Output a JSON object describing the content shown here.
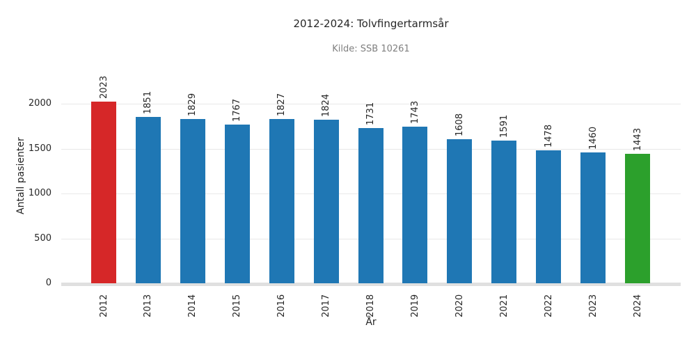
{
  "figure": {
    "title": "2012-2024: Tolvfingertarmsår",
    "subtitle": "Kilde: SSB 10261"
  },
  "chart_data": {
    "type": "bar",
    "title": "2012-2024: Tolvfingertarmsår",
    "subtitle": "Kilde: SSB 10261",
    "xlabel": "År",
    "ylabel": "Antall pasienter",
    "categories": [
      "2012",
      "2013",
      "2014",
      "2015",
      "2016",
      "2017",
      "2018",
      "2019",
      "2020",
      "2021",
      "2022",
      "2023",
      "2024"
    ],
    "values": [
      2023,
      1851,
      1829,
      1767,
      1827,
      1824,
      1731,
      1743,
      1608,
      1591,
      1478,
      1460,
      1443
    ],
    "bar_colors": [
      "#d62728",
      "#1f77b4",
      "#1f77b4",
      "#1f77b4",
      "#1f77b4",
      "#1f77b4",
      "#1f77b4",
      "#1f77b4",
      "#1f77b4",
      "#1f77b4",
      "#1f77b4",
      "#1f77b4",
      "#2ca02c"
    ],
    "value_labels": [
      "2023",
      "1851",
      "1829",
      "1767",
      "1827",
      "1824",
      "1731",
      "1743",
      "1608",
      "1591",
      "1478",
      "1460",
      "1443"
    ],
    "yticks": [
      0,
      500,
      1000,
      1500,
      2000
    ],
    "ylim": [
      0,
      2000
    ],
    "grid": "horizontal",
    "legend": "none",
    "tick_rotation_deg": 90,
    "colors": {
      "first_bar": "#d62728",
      "default_bar": "#1f77b4",
      "last_bar": "#2ca02c",
      "gridline": "#e8e8e8",
      "axis_line": "#e0e0e0",
      "text": "#262626",
      "subtitle_text": "#7f7f7f"
    }
  }
}
